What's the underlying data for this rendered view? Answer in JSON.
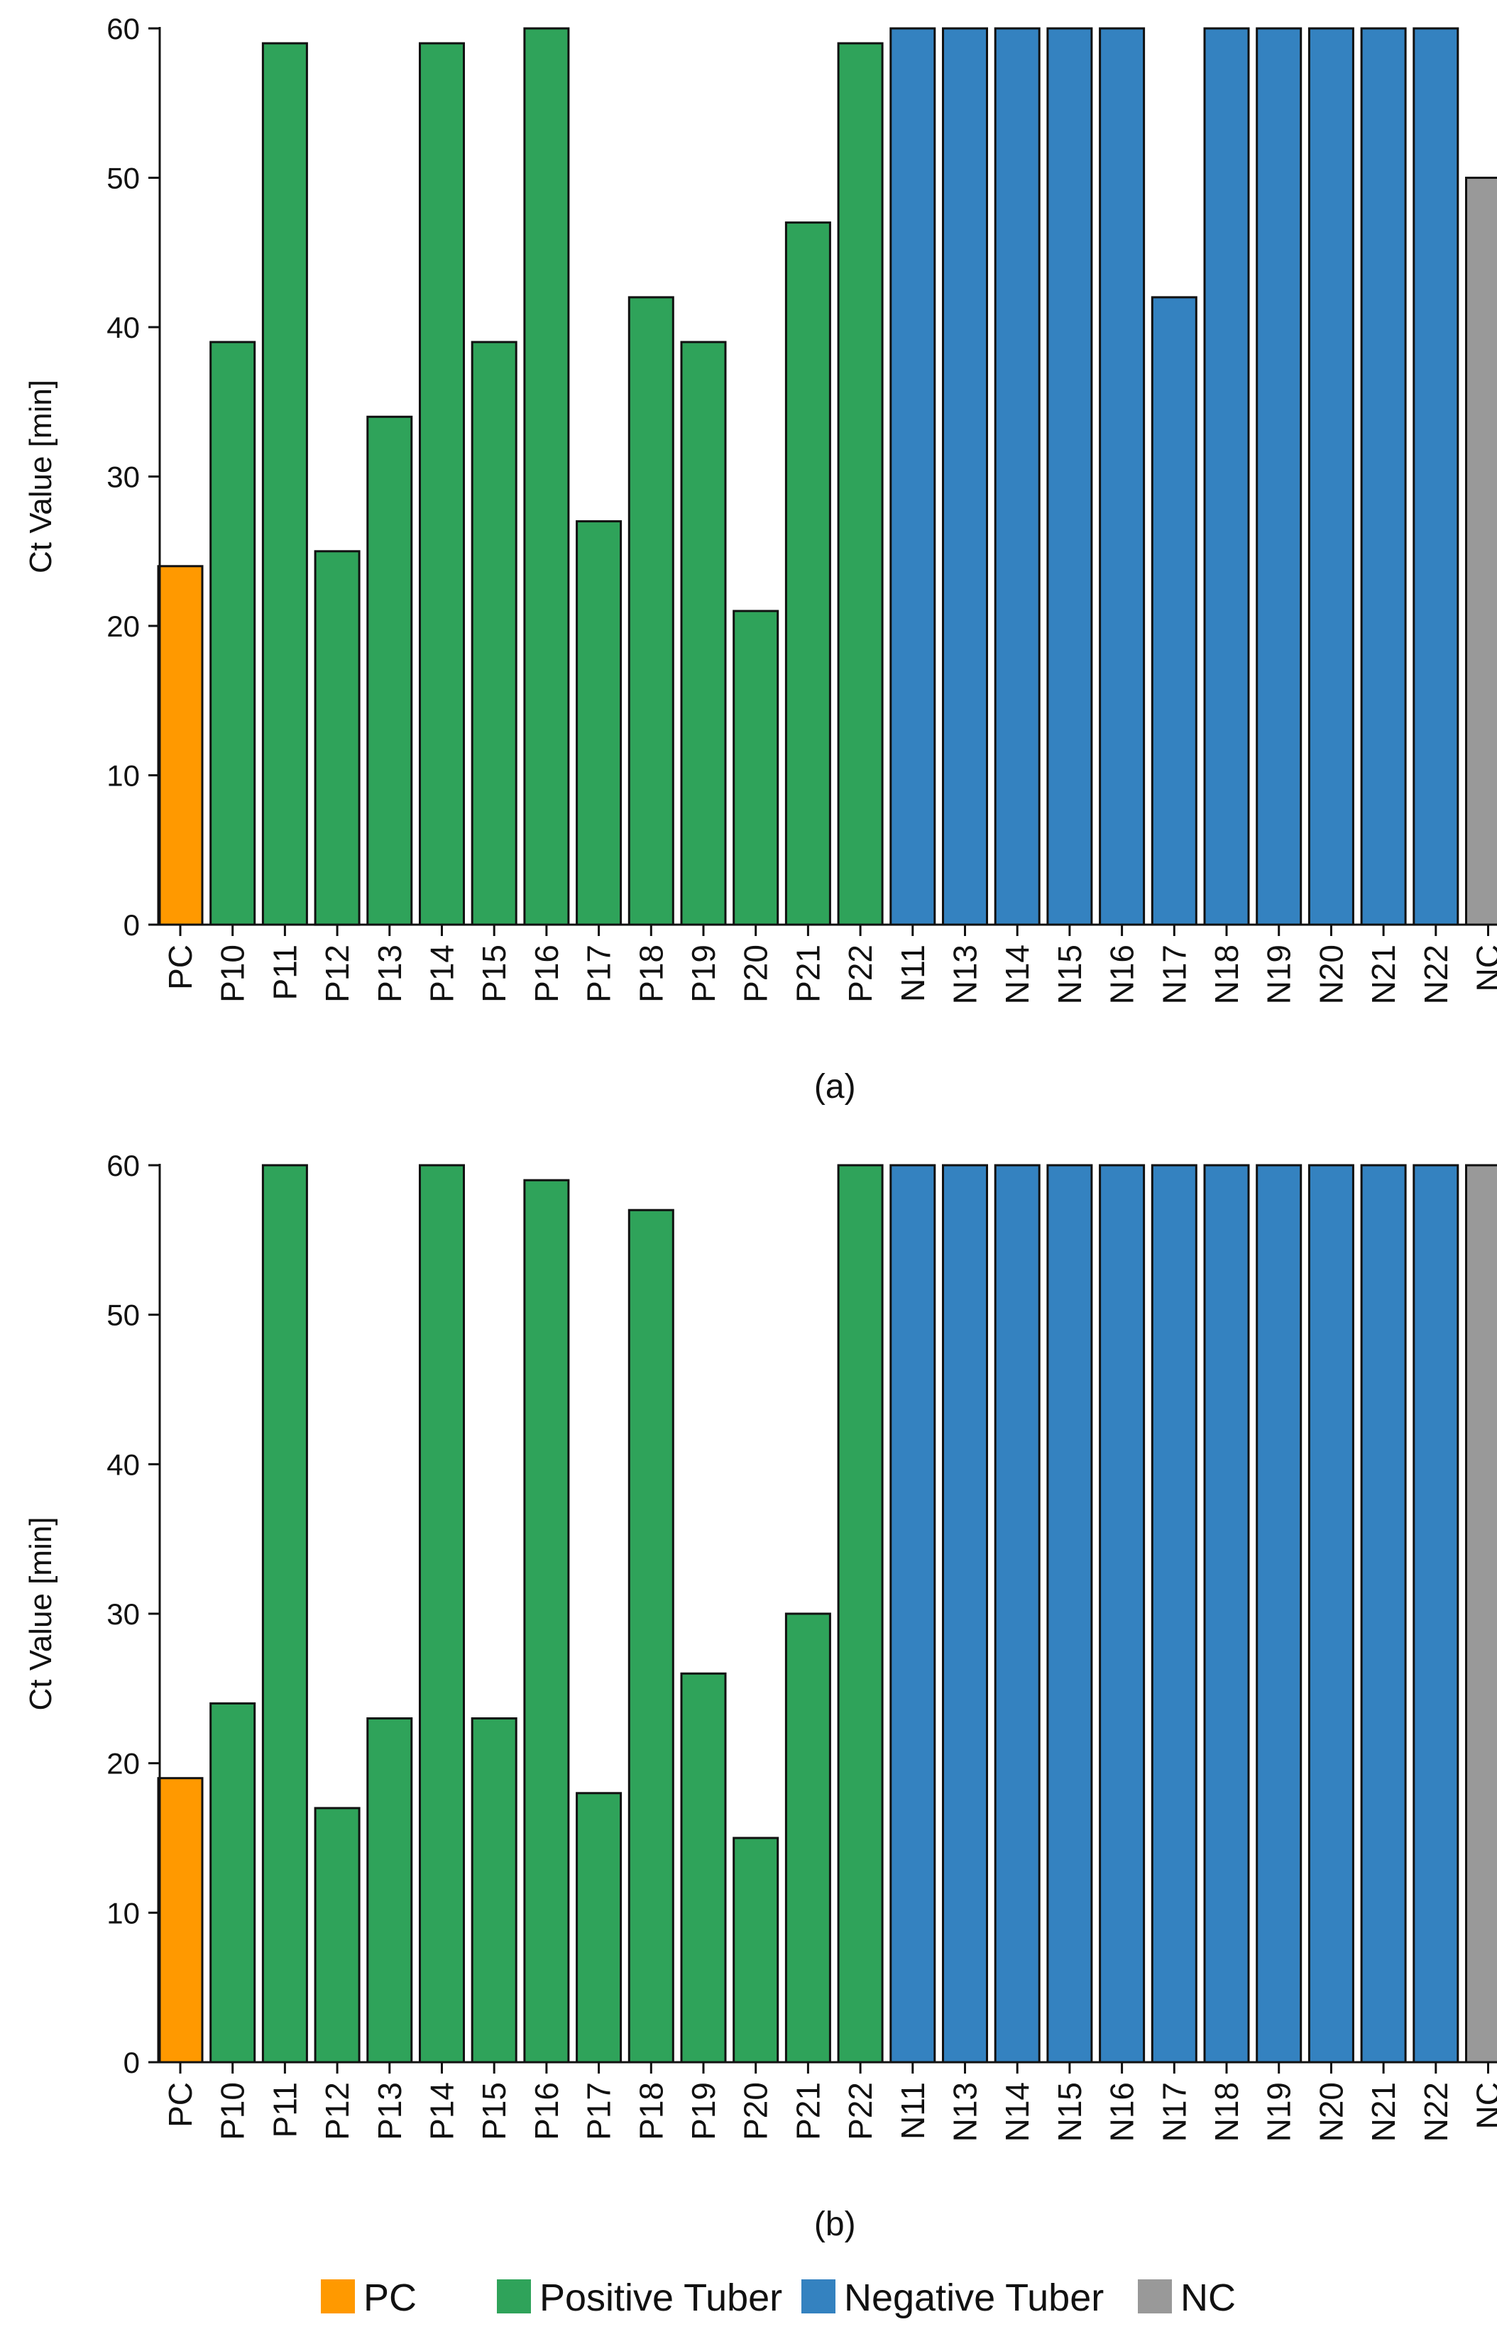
{
  "colors": {
    "PC": "#ff9900",
    "Positive Tuber": "#2fa35a",
    "Negative Tuber": "#3482c0",
    "NC": "#999999"
  },
  "legend": [
    "PC",
    "Positive Tuber",
    "Negative Tuber",
    "NC"
  ],
  "chart_data": [
    {
      "type": "bar",
      "caption": "(a)",
      "ylabel": "Ct Value [min]",
      "ylim": [
        0,
        60
      ],
      "yticks": [
        0,
        10,
        20,
        30,
        40,
        50,
        60
      ],
      "categories": [
        "PC",
        "P10",
        "P11",
        "P12",
        "P13",
        "P14",
        "P15",
        "P16",
        "P17",
        "P18",
        "P19",
        "P20",
        "P21",
        "P22",
        "N11",
        "N13",
        "N14",
        "N15",
        "N16",
        "N17",
        "N18",
        "N19",
        "N20",
        "N21",
        "N22",
        "NC"
      ],
      "groups": [
        "PC",
        "Positive Tuber",
        "Positive Tuber",
        "Positive Tuber",
        "Positive Tuber",
        "Positive Tuber",
        "Positive Tuber",
        "Positive Tuber",
        "Positive Tuber",
        "Positive Tuber",
        "Positive Tuber",
        "Positive Tuber",
        "Positive Tuber",
        "Positive Tuber",
        "Negative Tuber",
        "Negative Tuber",
        "Negative Tuber",
        "Negative Tuber",
        "Negative Tuber",
        "Negative Tuber",
        "Negative Tuber",
        "Negative Tuber",
        "Negative Tuber",
        "Negative Tuber",
        "Negative Tuber",
        "NC"
      ],
      "values": [
        24,
        39,
        59,
        25,
        34,
        59,
        39,
        60,
        27,
        42,
        39,
        21,
        47,
        59,
        60,
        60,
        60,
        60,
        60,
        42,
        60,
        60,
        60,
        60,
        60,
        50
      ]
    },
    {
      "type": "bar",
      "caption": "(b)",
      "ylabel": "Ct Value [min]",
      "ylim": [
        0,
        60
      ],
      "yticks": [
        0,
        10,
        20,
        30,
        40,
        50,
        60
      ],
      "categories": [
        "PC",
        "P10",
        "P11",
        "P12",
        "P13",
        "P14",
        "P15",
        "P16",
        "P17",
        "P18",
        "P19",
        "P20",
        "P21",
        "P22",
        "N11",
        "N13",
        "N14",
        "N15",
        "N16",
        "N17",
        "N18",
        "N19",
        "N20",
        "N21",
        "N22",
        "NC"
      ],
      "groups": [
        "PC",
        "Positive Tuber",
        "Positive Tuber",
        "Positive Tuber",
        "Positive Tuber",
        "Positive Tuber",
        "Positive Tuber",
        "Positive Tuber",
        "Positive Tuber",
        "Positive Tuber",
        "Positive Tuber",
        "Positive Tuber",
        "Positive Tuber",
        "Positive Tuber",
        "Negative Tuber",
        "Negative Tuber",
        "Negative Tuber",
        "Negative Tuber",
        "Negative Tuber",
        "Negative Tuber",
        "Negative Tuber",
        "Negative Tuber",
        "Negative Tuber",
        "Negative Tuber",
        "Negative Tuber",
        "NC"
      ],
      "values": [
        19,
        24,
        60,
        17,
        23,
        60,
        23,
        59,
        18,
        57,
        26,
        15,
        30,
        60,
        60,
        60,
        60,
        60,
        60,
        60,
        60,
        60,
        60,
        60,
        60,
        60
      ]
    }
  ]
}
